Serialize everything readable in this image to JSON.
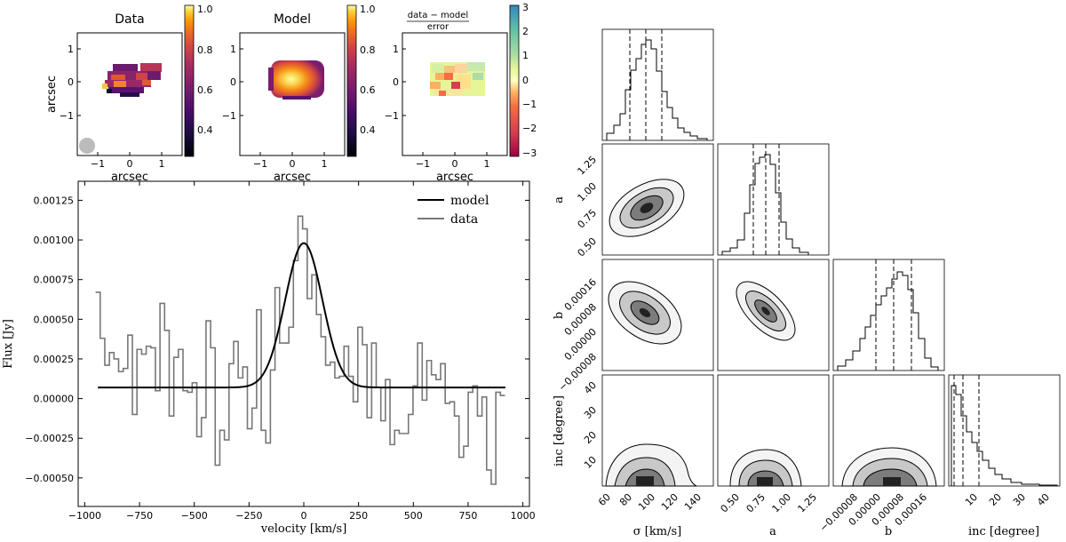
{
  "maps": {
    "panels": [
      {
        "title": "Data",
        "xlabel": "arcsec",
        "ylabel": "arcsec",
        "cbar_ticks": [
          "1.0",
          "0.8",
          "0.6",
          "0.4"
        ],
        "cbar_range": [
          0.25,
          1.0
        ],
        "cmap": "inferno"
      },
      {
        "title": "Model",
        "xlabel": "arcsec",
        "ylabel": "",
        "cbar_ticks": [
          "1.0",
          "0.8",
          "0.6",
          "0.4"
        ],
        "cbar_range": [
          0.25,
          1.0
        ],
        "cmap": "inferno"
      },
      {
        "title_num": "data − model",
        "title_den": "error",
        "xlabel": "arcsec",
        "ylabel": "",
        "cbar_ticks": [
          "3",
          "2",
          "1",
          "0",
          "−1",
          "−2",
          "−3"
        ],
        "cbar_range": [
          -3,
          3
        ],
        "cmap": "diverging"
      }
    ],
    "x_ticks": [
      "−1",
      "0",
      "1"
    ],
    "y_ticks": [
      "1",
      "0",
      "−1"
    ]
  },
  "chart_data": [
    {
      "type": "line",
      "xlabel": "velocity [km/s]",
      "ylabel": "Flux [Jy]",
      "xlim": [
        -1030,
        1030
      ],
      "ylim": [
        -0.00068,
        0.00137
      ],
      "x_ticks": [
        "−1000",
        "−750",
        "−500",
        "−250",
        "0",
        "250",
        "500",
        "750",
        "1000"
      ],
      "y_ticks": [
        "0.00125",
        "0.00100",
        "0.00075",
        "0.00050",
        "0.00025",
        "0.00000",
        "−0.00025",
        "−0.00050"
      ],
      "legend_position": "top-right",
      "series": [
        {
          "name": "model",
          "color": "#000000",
          "baseline": 7e-05,
          "peak": 0.00098,
          "center": 0,
          "sigma": 85
        },
        {
          "name": "data",
          "color": "#777777",
          "x": [
            -940,
            -919,
            -898,
            -877,
            -856,
            -835,
            -814,
            -793,
            -772,
            -751,
            -730,
            -709,
            -688,
            -667,
            -646,
            -625,
            -604,
            -583,
            -562,
            -541,
            -520,
            -499,
            -478,
            -457,
            -436,
            -415,
            -394,
            -373,
            -352,
            -331,
            -310,
            -289,
            -268,
            -247,
            -226,
            -205,
            -184,
            -163,
            -142,
            -121,
            -100,
            -79,
            -58,
            -37,
            -16,
            5,
            26,
            47,
            68,
            89,
            110,
            131,
            152,
            173,
            194,
            215,
            236,
            257,
            278,
            299,
            320,
            341,
            362,
            383,
            404,
            425,
            446,
            467,
            488,
            509,
            530,
            551,
            572,
            593,
            614,
            635,
            656,
            677,
            698,
            719,
            740,
            761,
            782,
            803,
            824,
            845,
            866,
            887,
            908
          ],
          "y": [
            0.00067,
            0.00038,
            0.00021,
            0.00029,
            0.00025,
            0.00017,
            0.00019,
            0.0004,
            -0.0001,
            0.00031,
            0.00028,
            0.00033,
            0.00032,
            5e-05,
            0.0006,
            0.00043,
            -0.00011,
            0.00026,
            0.00031,
            5e-05,
            4e-05,
            0.0001,
            -0.00024,
            -0.00012,
            0.00049,
            0.00032,
            -0.00042,
            -0.0002,
            -0.00026,
            0.00022,
            0.00036,
            0.00013,
            0.0002,
            -0.00019,
            -6e-05,
            0.00056,
            -0.0002,
            -0.00028,
            0.00018,
            0.0007,
            0.00035,
            0.00035,
            0.00045,
            0.00087,
            0.00115,
            0.00107,
            0.00063,
            0.00078,
            0.00053,
            0.00039,
            0.00021,
            0.00023,
            0.00013,
            0.00014,
            0.00033,
            0.00014,
            -2e-05,
            0.00045,
            0.00034,
            -0.00012,
            0.00035,
            7e-05,
            -0.00014,
            0.00012,
            -0.00029,
            -0.0002,
            -0.00022,
            -0.00022,
            -0.0001,
            8e-05,
            0.00035,
            -1e-05,
            0.00024,
            0.00015,
            0.00012,
            0.00022,
            -3e-05,
            -2e-05,
            -0.00011,
            -0.00037,
            -0.0003,
            4e-05,
            8e-05,
            -0.00011,
            1e-05,
            -0.00045,
            -0.00054,
            4e-05,
            2e-05
          ]
        }
      ]
    },
    {
      "type": "corner",
      "parameters": [
        "σ [km/s]",
        "a",
        "b",
        "inc [degree]"
      ],
      "x_ticks": [
        [
          "60",
          "80",
          "100",
          "120",
          "140"
        ],
        [
          "0.50",
          "0.75",
          "1.00",
          "1.25"
        ],
        [
          "−0.00008",
          "0.00000",
          "0.00008",
          "0.00016"
        ],
        [
          "10",
          "20",
          "30",
          "40"
        ]
      ],
      "y_ticks": {
        "a": [
          "1.25",
          "1.00",
          "0.75",
          "0.50"
        ],
        "b": [
          "0.00016",
          "0.00008",
          "0.00000",
          "−0.00008"
        ],
        "inc [degree]": [
          "40",
          "30",
          "20",
          "10"
        ]
      },
      "quantile_lines": "dashed, at 16th / 50th / 84th percentiles"
    }
  ]
}
